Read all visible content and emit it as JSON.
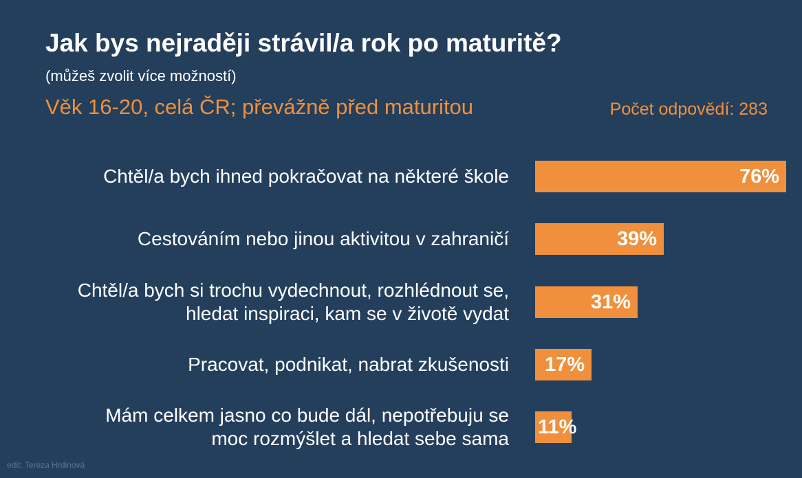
{
  "header": {
    "title": "Jak bys nejraději strávil/a rok po maturitě?",
    "note": "(můžeš zvolit více možností)",
    "subtitle": "Věk 16-20, celá ČR; převážně před maturitou",
    "count": "Počet odpovědí: 283"
  },
  "credit": "edit: Tereza Hrdinová",
  "colors": {
    "background": "#243f5c",
    "bar": "#f0903c",
    "accent": "#f0903c"
  },
  "chart_data": {
    "type": "bar",
    "orientation": "horizontal",
    "title": "Jak bys nejraději strávil/a rok po maturitě?",
    "categories": [
      [
        "Chtěl/a bych ihned pokračovat na některé škole"
      ],
      [
        "Cestováním nebo jinou aktivitou v zahraničí"
      ],
      [
        "Chtěl/a bych si trochu vydechnout, rozhlédnout se,",
        "hledat inspiraci, kam se v životě vydat"
      ],
      [
        "Pracovat, podnikat, nabrat zkušenosti"
      ],
      [
        "Mám celkem jasno co bude dál, nepotřebuju se",
        "moc rozmýšlet a hledat sebe sama"
      ]
    ],
    "values": [
      76,
      39,
      31,
      17,
      11
    ],
    "value_labels": [
      "76%",
      "39%",
      "31%",
      "17%",
      "11%"
    ],
    "unit": "%",
    "xlim": [
      0,
      76
    ]
  }
}
